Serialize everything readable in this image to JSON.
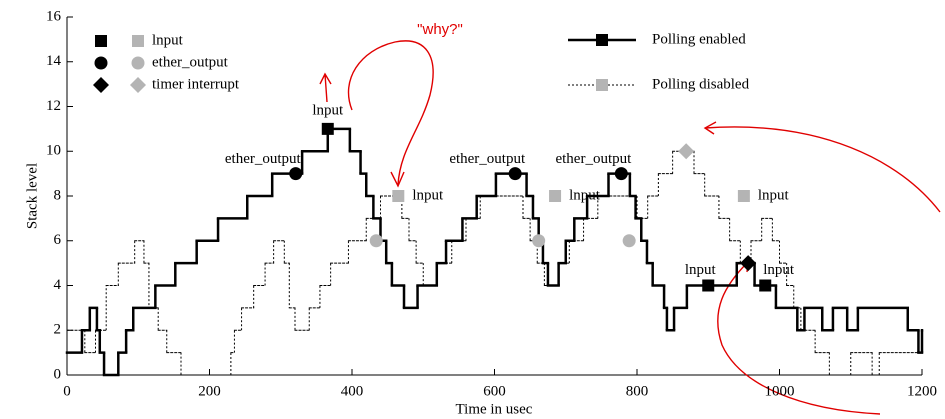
{
  "chart_data": {
    "type": "step",
    "xlabel": "Time in usec",
    "ylabel": "Stack level",
    "xlim": [
      0,
      1200
    ],
    "ylim": [
      0,
      16
    ],
    "xticks": [
      0,
      200,
      400,
      600,
      800,
      1000,
      1200
    ],
    "yticks": [
      0,
      2,
      4,
      6,
      8,
      10,
      12,
      14,
      16
    ],
    "series": [
      {
        "name": "Polling enabled",
        "color": "#000000",
        "style": "solid",
        "x": [
          0,
          21,
          32,
          42,
          46,
          52,
          72,
          83,
          93,
          124,
          152,
          182,
          212,
          253,
          288,
          330,
          366,
          397,
          412,
          420,
          430,
          440,
          448,
          456,
          473,
          492,
          519,
          532,
          555,
          575,
          602,
          645,
          654,
          662,
          668,
          675,
          690,
          700,
          712,
          730,
          760,
          790,
          798,
          806,
          814,
          822,
          838,
          842,
          852,
          870,
          940,
          965,
          995,
          1025,
          1035,
          1060,
          1075,
          1095,
          1110,
          1180,
          1195,
          1200
        ],
        "values": [
          1,
          2,
          3,
          2,
          1,
          0,
          1,
          2,
          3,
          4,
          5,
          6,
          7,
          8,
          9,
          10,
          11,
          10,
          9,
          8,
          7,
          6,
          5,
          4,
          3,
          4,
          5,
          6,
          7,
          8,
          9,
          8,
          7,
          6,
          5,
          4,
          5,
          6,
          7,
          8,
          9,
          8,
          7,
          6,
          5,
          4,
          3,
          2,
          3,
          4,
          5,
          4,
          3,
          2,
          3,
          2,
          3,
          2,
          3,
          2,
          1,
          2
        ]
      },
      {
        "name": "Polling disabled",
        "color": "#000000",
        "style": "dotted",
        "x": [
          0,
          25,
          40,
          55,
          72,
          95,
          108,
          115,
          128,
          140,
          160,
          230,
          235,
          245,
          262,
          278,
          290,
          305,
          312,
          320,
          340,
          355,
          370,
          395,
          420,
          440,
          470,
          480,
          490,
          500,
          520,
          540,
          560,
          580,
          640,
          650,
          660,
          670,
          690,
          705,
          725,
          745,
          800,
          815,
          830,
          850,
          880,
          895,
          915,
          930,
          945,
          960,
          975,
          990,
          1000,
          1010,
          1020,
          1030,
          1050,
          1070,
          1100,
          1130,
          1140,
          1200
        ],
        "values": [
          2,
          1,
          2,
          4,
          5,
          6,
          5,
          3,
          2,
          1,
          0,
          1,
          2,
          3,
          4,
          5,
          6,
          5,
          3,
          2,
          3,
          4,
          5,
          6,
          7,
          8,
          7,
          6,
          5,
          4,
          5,
          6,
          7,
          8,
          7,
          6,
          5,
          4,
          5,
          6,
          7,
          8,
          7,
          8,
          9,
          10,
          9,
          8,
          7,
          6,
          5,
          6,
          7,
          6,
          5,
          4,
          3,
          2,
          1,
          0,
          1,
          0,
          1,
          1
        ]
      }
    ],
    "event_types": [
      {
        "name": "lnput",
        "shape": "square"
      },
      {
        "name": "ether_output",
        "shape": "circle"
      },
      {
        "name": "timer interrupt",
        "shape": "diamond"
      }
    ],
    "series_marker_colors": [
      "#000000",
      "#b4b4b4"
    ],
    "points": [
      {
        "series": 0,
        "event": 1,
        "x": 321,
        "y": 9,
        "label": "ether_output"
      },
      {
        "series": 0,
        "event": 0,
        "x": 366,
        "y": 11,
        "label": "lnput"
      },
      {
        "series": 1,
        "event": 1,
        "x": 434,
        "y": 6
      },
      {
        "series": 1,
        "event": 0,
        "x": 465,
        "y": 8,
        "label": "lnput"
      },
      {
        "series": 0,
        "event": 1,
        "x": 629,
        "y": 9,
        "label": "ether_output"
      },
      {
        "series": 1,
        "event": 1,
        "x": 662,
        "y": 6
      },
      {
        "series": 1,
        "event": 0,
        "x": 685,
        "y": 8,
        "label": "lnput"
      },
      {
        "series": 0,
        "event": 1,
        "x": 778,
        "y": 9,
        "label": "ether_output"
      },
      {
        "series": 1,
        "event": 1,
        "x": 789,
        "y": 6
      },
      {
        "series": 1,
        "event": 2,
        "x": 869,
        "y": 10
      },
      {
        "series": 0,
        "event": 0,
        "x": 900,
        "y": 4,
        "label": "lnput"
      },
      {
        "series": 1,
        "event": 0,
        "x": 950,
        "y": 8,
        "label": "lnput"
      },
      {
        "series": 0,
        "event": 2,
        "x": 956,
        "y": 5
      },
      {
        "series": 0,
        "event": 0,
        "x": 980,
        "y": 4,
        "label": "lnput"
      }
    ],
    "annotation": "\"why?\""
  }
}
